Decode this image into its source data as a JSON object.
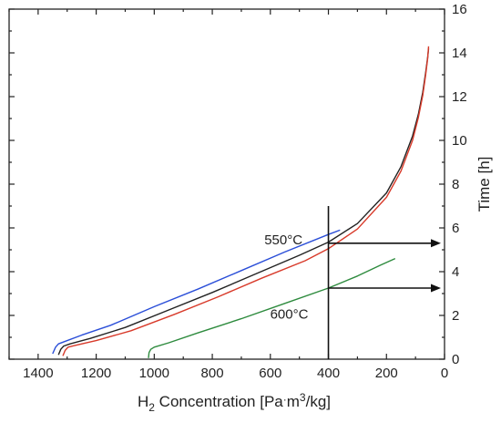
{
  "chart_data": {
    "type": "line",
    "title": "",
    "xlabel": {
      "main": "H",
      "sub": "2",
      "rest": " Concentration [Pa",
      "dot": "·",
      "unit": "m",
      "sup": "3",
      "tail": "/kg]"
    },
    "ylabel": "Time [h]",
    "xlim": [
      1500,
      0
    ],
    "xreversed": true,
    "ylim": [
      0,
      16
    ],
    "y_axis_side": "right",
    "grid": false,
    "x_ticks": [
      1400,
      1200,
      1000,
      800,
      600,
      400,
      200,
      0
    ],
    "y_ticks": [
      0,
      2,
      4,
      6,
      8,
      10,
      12,
      14,
      16
    ],
    "series": [
      {
        "color": "#2a4ed8",
        "x": [
          1350,
          1340,
          1330,
          1310,
          1250,
          1150,
          1000,
          850,
          700,
          550,
          400,
          360
        ],
        "y": [
          0.25,
          0.55,
          0.7,
          0.8,
          1.1,
          1.55,
          2.4,
          3.2,
          4.05,
          4.9,
          5.7,
          5.9
        ]
      },
      {
        "color": "#222222",
        "x": [
          1330,
          1322,
          1312,
          1290,
          1220,
          1100,
          950,
          800,
          650,
          500,
          400,
          300,
          200,
          150,
          110,
          90,
          75,
          65,
          58,
          55
        ],
        "y": [
          0.2,
          0.45,
          0.6,
          0.7,
          0.95,
          1.45,
          2.25,
          3.05,
          3.9,
          4.75,
          5.35,
          6.2,
          7.6,
          8.8,
          10.2,
          11.2,
          12.2,
          13.1,
          13.8,
          14.2
        ]
      },
      {
        "color": "#d83a2a",
        "x": [
          1315,
          1307,
          1297,
          1275,
          1200,
          1080,
          930,
          780,
          630,
          480,
          400,
          300,
          200,
          150,
          110,
          90,
          75,
          65,
          58,
          55
        ],
        "y": [
          0.15,
          0.4,
          0.55,
          0.62,
          0.85,
          1.3,
          2.05,
          2.85,
          3.7,
          4.5,
          5.05,
          5.95,
          7.4,
          8.6,
          10.0,
          11.05,
          12.05,
          13.0,
          13.75,
          14.3
        ]
      },
      {
        "color": "#2e8b3e",
        "x": [
          1020,
          1018,
          1012,
          1000,
          950,
          850,
          700,
          550,
          400,
          300,
          220,
          170
        ],
        "y": [
          0.05,
          0.3,
          0.45,
          0.55,
          0.75,
          1.2,
          1.85,
          2.55,
          3.25,
          3.8,
          4.3,
          4.6
        ]
      }
    ],
    "annotations": [
      {
        "text": "550°C",
        "x": 555,
        "y": 5.25
      },
      {
        "text": "600°C",
        "x": 535,
        "y": 1.85
      }
    ],
    "reference_line": {
      "x": 400,
      "y_top": 7.0
    },
    "arrows": [
      {
        "from_x": 400,
        "y": 5.3
      },
      {
        "from_x": 400,
        "y": 3.25
      }
    ]
  }
}
